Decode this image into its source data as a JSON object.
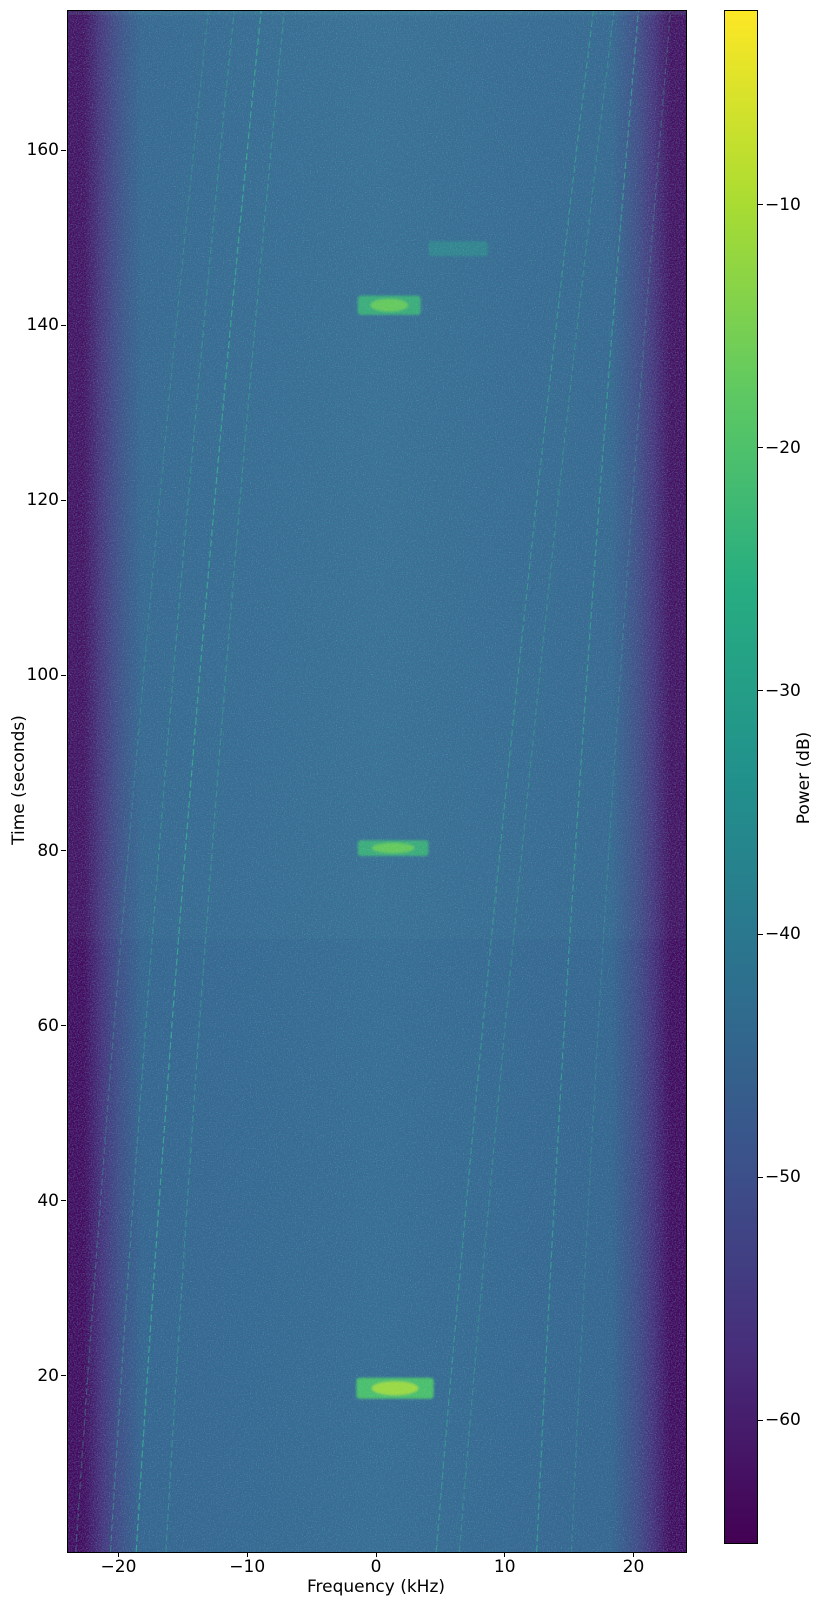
{
  "chart_data": {
    "type": "heatmap",
    "subtype": "spectrogram-waterfall",
    "title": "",
    "xlabel": "Frequency (kHz)",
    "ylabel": "Time (seconds)",
    "colorbar_label": "Power (dB)",
    "colormap": "viridis",
    "grid": false,
    "xlim": [
      -24,
      24
    ],
    "ylim": [
      0,
      176
    ],
    "clim_db": [
      -65,
      -2
    ],
    "xticks": [
      -20,
      -10,
      0,
      10,
      20
    ],
    "xtick_labels": [
      "−20",
      "−10",
      "0",
      "10",
      "20"
    ],
    "yticks": [
      20,
      40,
      60,
      80,
      100,
      120,
      140,
      160
    ],
    "ytick_labels": [
      "20",
      "40",
      "60",
      "80",
      "100",
      "120",
      "140",
      "160"
    ],
    "colorbar_ticks": [
      -10,
      -20,
      -30,
      -40,
      -50,
      -60
    ],
    "colorbar_tick_labels": [
      "−10",
      "−20",
      "−30",
      "−40",
      "−50",
      "−60"
    ],
    "noise_floor_db": -45,
    "occupied_band_khz": [
      -21.5,
      21.5
    ],
    "background_seam_t_s": 70,
    "bursts": [
      {
        "t_start_s": 17.5,
        "t_end_s": 19.9,
        "f_start_khz": -1.6,
        "f_end_khz": 4.4,
        "peak_db": -12,
        "intensity": "strong"
      },
      {
        "t_start_s": 79.5,
        "t_end_s": 81.3,
        "f_start_khz": -1.5,
        "f_end_khz": 4.0,
        "peak_db": -22,
        "intensity": "medium"
      },
      {
        "t_start_s": 141.3,
        "t_end_s": 143.5,
        "f_start_khz": -1.5,
        "f_end_khz": 3.4,
        "peak_db": -22,
        "intensity": "medium"
      },
      {
        "t_start_s": 148.0,
        "t_end_s": 149.7,
        "f_start_khz": 4.0,
        "f_end_khz": 8.6,
        "peak_db": -35,
        "intensity": "faint"
      }
    ],
    "drift_lines": [
      {
        "f_at_t0_khz": -23.4,
        "f_at_tmax_khz": -13.1,
        "opacity": 0.4
      },
      {
        "f_at_t0_khz": -20.7,
        "f_at_tmax_khz": -11.1,
        "opacity": 0.5
      },
      {
        "f_at_t0_khz": -18.7,
        "f_at_tmax_khz": -9.0,
        "opacity": 0.85
      },
      {
        "f_at_t0_khz": -16.4,
        "f_at_tmax_khz": -7.2,
        "opacity": 0.5
      },
      {
        "f_at_t0_khz": 4.6,
        "f_at_tmax_khz": 16.8,
        "opacity": 0.6
      },
      {
        "f_at_t0_khz": 6.4,
        "f_at_tmax_khz": 18.4,
        "opacity": 0.45
      },
      {
        "f_at_t0_khz": 12.4,
        "f_at_tmax_khz": 20.3,
        "opacity": 0.7
      },
      {
        "f_at_t0_khz": 15.1,
        "f_at_tmax_khz": 22.8,
        "opacity": 0.35
      }
    ],
    "drift_line_bow_khz": 1.2
  },
  "colors": {
    "figure_background": "#ffffff",
    "noise_floor": "#31688e",
    "noise_floor_center": "#337092",
    "band_edge": "#430559",
    "drift_line": "#38ab8f",
    "burst_strong_body": "#4ec36b",
    "burst_strong_core": "#a8dd3f",
    "burst_medium_body": "#3fbc77",
    "burst_medium_core": "#6ecf5b",
    "burst_faint_body": "#2fa18c",
    "axis_text": "#000000",
    "viridis_stops": [
      "#fde725",
      "#aadc32",
      "#5ec962",
      "#27ad81",
      "#21918c",
      "#2c728e",
      "#3b528b",
      "#472d7b",
      "#440154"
    ]
  }
}
